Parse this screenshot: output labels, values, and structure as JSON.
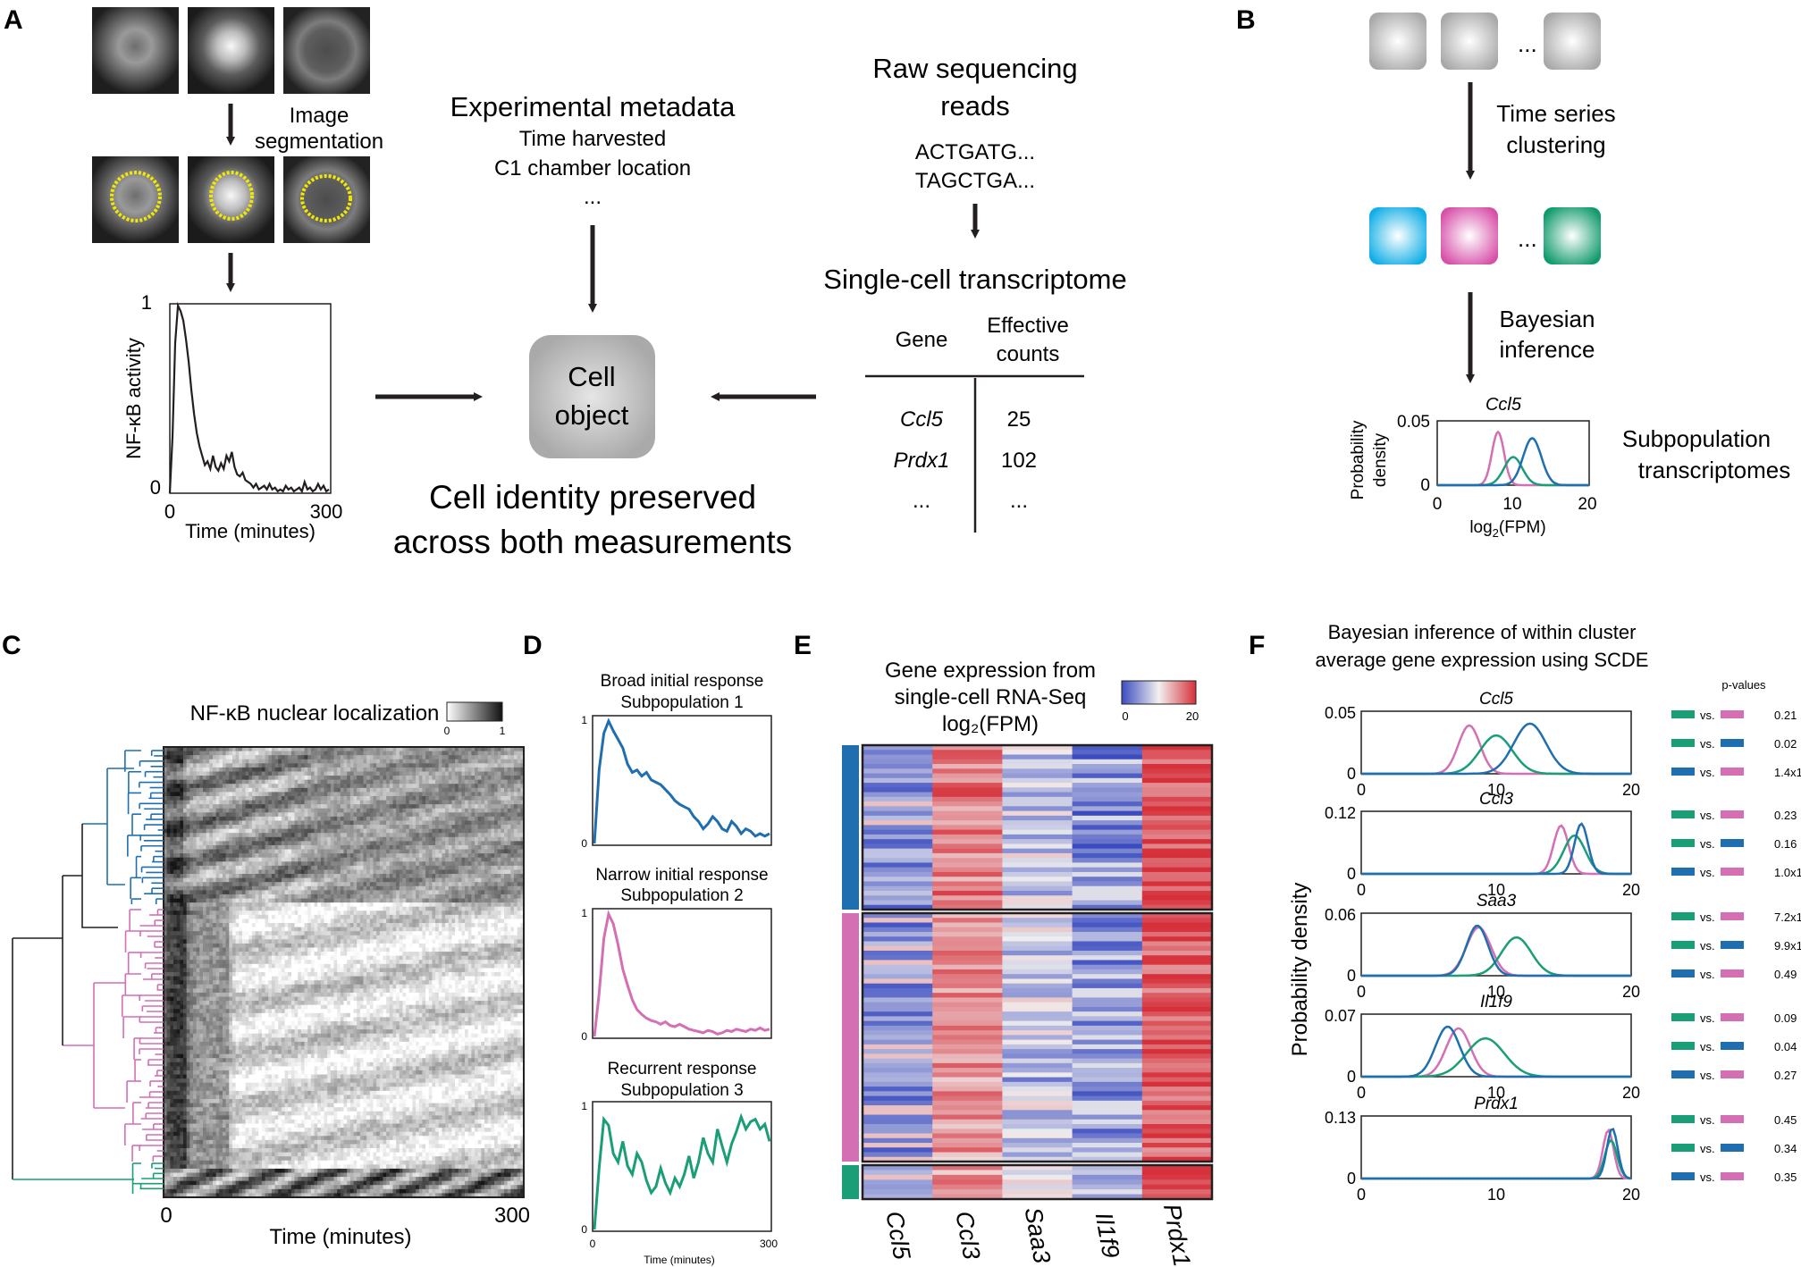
{
  "panel_labels": [
    "A",
    "B",
    "C",
    "D",
    "E",
    "F"
  ],
  "panelA": {
    "image_segmentation": [
      "Image",
      "segmentation"
    ],
    "metadata_title": "Experimental metadata",
    "metadata_lines": [
      "Time harvested",
      "C1 chamber location",
      "..."
    ],
    "raw_reads": [
      "Raw sequencing",
      "reads"
    ],
    "sequences": [
      "ACTGATG...",
      "TAGCTGA..."
    ],
    "transcriptome_title": "Single-cell transcriptome",
    "table": {
      "col_gene": "Gene",
      "col_counts": [
        "Effective",
        "counts"
      ],
      "rows": [
        {
          "gene": "Ccl5",
          "count": "25"
        },
        {
          "gene": "Prdx1",
          "count": "102"
        },
        {
          "gene": "...",
          "count": "..."
        }
      ]
    },
    "cell_object": [
      "Cell",
      "object"
    ],
    "identity": [
      "Cell identity preserved",
      "across both measurements"
    ],
    "trace": {
      "ylabel": "NF-κB activity",
      "xlabel": "Time (minutes)",
      "y_ticks": [
        "1",
        "0"
      ],
      "x_ticks": [
        "0",
        "300"
      ],
      "values": [
        0,
        0.3,
        0.8,
        1.0,
        0.97,
        0.92,
        0.82,
        0.7,
        0.55,
        0.42,
        0.32,
        0.25,
        0.2,
        0.15,
        0.17,
        0.13,
        0.2,
        0.14,
        0.12,
        0.16,
        0.13,
        0.2,
        0.17,
        0.22,
        0.14,
        0.1,
        0.09,
        0.11,
        0.07,
        0.06,
        0.05,
        0.03,
        0.05,
        0.02,
        0.03,
        0.04,
        0.02,
        0.05,
        0.02,
        0.03,
        0.01,
        0.02,
        0.01,
        0.04,
        0.02,
        0.03,
        0.01,
        0.02,
        0.03,
        0.01,
        0.06,
        0.02,
        0.03,
        0.01,
        0.02,
        0.05,
        0.02,
        0.04,
        0.01,
        0.02
      ]
    }
  },
  "panelB": {
    "clustering": [
      "Time series",
      "clustering"
    ],
    "bayes": [
      "Bayesian",
      "inference"
    ],
    "ellipsis": "...",
    "chart_title": "Ccl5",
    "ylabel": [
      "Probability",
      "density"
    ],
    "xlabel_base": "log",
    "xlabel_sub": "2",
    "xlabel_rest": "(FPM)",
    "y_ticks": [
      "0.05",
      "0"
    ],
    "x_ticks": [
      "0",
      "10",
      "20"
    ],
    "subpop": [
      "Subpopulation",
      "transcriptomes"
    ]
  },
  "panelC": {
    "title": "NF-κB nuclear localization",
    "scale_ticks": [
      "0",
      "1"
    ],
    "xlabel": "Time (minutes)",
    "x_ticks": [
      "0",
      "300"
    ]
  },
  "panelD": {
    "plots": [
      {
        "title": [
          "Broad initial response",
          "Subpopulation 1"
        ],
        "color": "#1f6fb0",
        "values": [
          0,
          0.6,
          0.9,
          1.0,
          0.92,
          0.85,
          0.78,
          0.65,
          0.58,
          0.6,
          0.55,
          0.58,
          0.52,
          0.5,
          0.48,
          0.44,
          0.4,
          0.35,
          0.32,
          0.3,
          0.28,
          0.22,
          0.18,
          0.12,
          0.16,
          0.22,
          0.18,
          0.12,
          0.1,
          0.18,
          0.14,
          0.08,
          0.12,
          0.1,
          0.06,
          0.08,
          0.06,
          0.08
        ]
      },
      {
        "title": [
          "Narrow initial response",
          "Subpopulation 2"
        ],
        "color": "#d46fb4",
        "values": [
          0,
          0.35,
          0.8,
          1.0,
          0.92,
          0.75,
          0.55,
          0.42,
          0.3,
          0.22,
          0.18,
          0.15,
          0.13,
          0.12,
          0.1,
          0.12,
          0.09,
          0.08,
          0.1,
          0.08,
          0.06,
          0.05,
          0.04,
          0.03,
          0.05,
          0.04,
          0.02,
          0.03,
          0.05,
          0.04,
          0.06,
          0.05,
          0.04,
          0.06,
          0.05,
          0.07,
          0.05,
          0.06
        ]
      },
      {
        "title": [
          "Recurrent response",
          "Subpopulation 3"
        ],
        "color": "#1a9e77",
        "values": [
          0,
          0.5,
          0.9,
          0.85,
          0.62,
          0.55,
          0.72,
          0.52,
          0.45,
          0.62,
          0.55,
          0.4,
          0.3,
          0.35,
          0.5,
          0.38,
          0.3,
          0.42,
          0.35,
          0.45,
          0.6,
          0.42,
          0.55,
          0.75,
          0.62,
          0.55,
          0.82,
          0.68,
          0.55,
          0.7,
          0.8,
          0.92,
          0.82,
          0.88,
          0.9,
          0.82,
          0.86,
          0.72
        ]
      }
    ],
    "y_ticks": [
      "1",
      "0"
    ],
    "x_ticks": [
      "0",
      "300"
    ],
    "xlabel": "Time (minutes)"
  },
  "panelE": {
    "title": [
      "Gene expression from",
      "single-cell RNA-Seq",
      "log₂(FPM)"
    ],
    "scale_ticks": [
      "0",
      "20"
    ],
    "genes": [
      "Ccl5",
      "Ccl3",
      "Saa3",
      "Il1f9",
      "Prdx1"
    ]
  },
  "panelF": {
    "title": [
      "Bayesian inference of within cluster",
      "average gene expression using SCDE"
    ],
    "ylabel": "Probability density",
    "pvalues_header": "p-values",
    "vs": "vs.",
    "x_ticks": [
      "0",
      "10",
      "20"
    ],
    "charts": [
      {
        "gene": "Ccl5",
        "ymax": "0.05",
        "peaks": [
          [
            8,
            0.8
          ],
          [
            10,
            1.2
          ],
          [
            12.5,
            1.2
          ]
        ],
        "pvals": [
          "0.21",
          "0.02",
          "1.4x1"
        ]
      },
      {
        "gene": "Ccl3",
        "ymax": "0.12",
        "peaks": [
          [
            14.8,
            0.55
          ],
          [
            15.8,
            0.8
          ],
          [
            16.3,
            0.5
          ]
        ],
        "pvals": [
          "0.23",
          "0.16",
          "1.0x1"
        ]
      },
      {
        "gene": "Saa3",
        "ymax": "0.06",
        "peaks": [
          [
            8.7,
            0.9
          ],
          [
            11.5,
            1.1
          ],
          [
            8.6,
            0.8
          ]
        ],
        "pvals": [
          "7.2x1",
          "9.9x1",
          "0.49"
        ]
      },
      {
        "gene": "Il1f9",
        "ymax": "0.07",
        "peaks": [
          [
            7.2,
            0.9
          ],
          [
            9.2,
            1.4
          ],
          [
            6.4,
            0.9
          ]
        ],
        "pvals": [
          "0.09",
          "0.04",
          "0.27"
        ]
      },
      {
        "gene": "Prdx1",
        "ymax": "0.13",
        "peaks": [
          [
            18.3,
            0.4
          ],
          [
            18.5,
            0.45
          ],
          [
            18.6,
            0.4
          ]
        ],
        "pvals": [
          "0.45",
          "0.34",
          "0.35"
        ]
      }
    ]
  },
  "colors": {
    "blue": "#1f6fb0",
    "pink": "#d46fb4",
    "green": "#1a9e77",
    "cyan": "#29b9ea"
  }
}
